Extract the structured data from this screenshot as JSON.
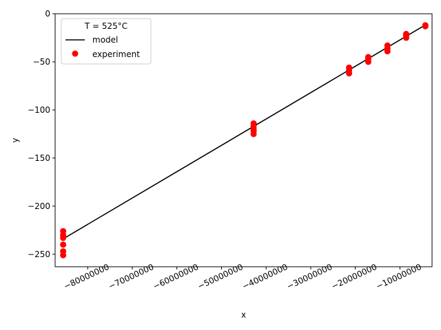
{
  "chart_data": {
    "type": "scatter",
    "xlabel": "x",
    "ylabel": "y",
    "xlim": [
      -87300000,
      -2800000
    ],
    "ylim": [
      -263,
      0
    ],
    "xticks": [
      -80000000,
      -70000000,
      -60000000,
      -50000000,
      -40000000,
      -30000000,
      -20000000,
      -10000000
    ],
    "xtick_labels": [
      "−80000000",
      "−70000000",
      "−60000000",
      "−50000000",
      "−40000000",
      "−30000000",
      "−20000000",
      "−10000000"
    ],
    "yticks": [
      0,
      -50,
      -100,
      -150,
      -200,
      -250
    ],
    "ytick_labels": [
      "0",
      "−50",
      "−100",
      "−150",
      "−200",
      "−250"
    ],
    "legend": {
      "title": "T = 525°C",
      "position": "upper-left"
    },
    "series": [
      {
        "name": "model",
        "kind": "line",
        "color": "#000000",
        "x": [
          -85500000,
          -4800000
        ],
        "y": [
          -234,
          -13
        ]
      },
      {
        "name": "experiment",
        "kind": "markers",
        "color": "#ff0000",
        "points": [
          [
            -85500000,
            -226
          ],
          [
            -85500000,
            -230
          ],
          [
            -85500000,
            -233
          ],
          [
            -85500000,
            -240
          ],
          [
            -85500000,
            -247
          ],
          [
            -85500000,
            -251
          ],
          [
            -42800000,
            -114
          ],
          [
            -42800000,
            -117
          ],
          [
            -42800000,
            -120
          ],
          [
            -42800000,
            -122
          ],
          [
            -42800000,
            -125
          ],
          [
            -21400000,
            -56
          ],
          [
            -21400000,
            -59
          ],
          [
            -21400000,
            -62
          ],
          [
            -17100000,
            -45
          ],
          [
            -17100000,
            -47
          ],
          [
            -17100000,
            -50
          ],
          [
            -12800000,
            -33
          ],
          [
            -12800000,
            -36
          ],
          [
            -12800000,
            -39
          ],
          [
            -8600000,
            -21
          ],
          [
            -8600000,
            -23
          ],
          [
            -8600000,
            -25
          ],
          [
            -4300000,
            -12
          ],
          [
            -4300000,
            -13
          ]
        ]
      }
    ]
  }
}
